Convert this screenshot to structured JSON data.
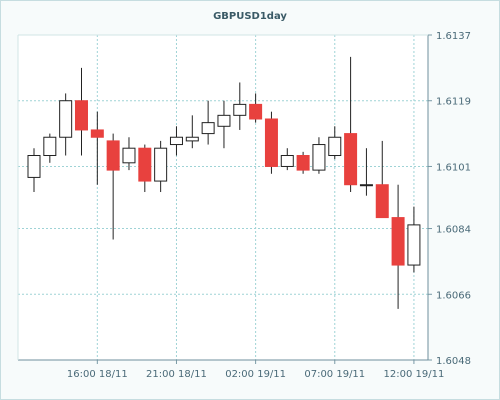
{
  "chart_data": {
    "type": "candlestick",
    "title": "GBPUSD1day",
    "colors": {
      "up": "#ffffff",
      "down": "#e8413e",
      "outline": "#222222",
      "grid": "#9fd3d6",
      "plot_bg": "#ffffff",
      "frame_bg": "#f7fbfb",
      "axis_text": "#4a6a78"
    },
    "ylim": [
      1.6048,
      1.6137
    ],
    "y_ticks": [
      "1.6137",
      "1.6119",
      "1.6101",
      "1.6084",
      "1.6066",
      "1.6048"
    ],
    "x_ticks": [
      "16:00 18/11",
      "21:00 18/11",
      "02:00 19/11",
      "07:00 19/11",
      "12:00 19/11"
    ],
    "x_tick_candle_index": [
      4,
      9,
      14,
      19,
      24
    ],
    "grid": true,
    "candles": [
      {
        "open": 1.6098,
        "high": 1.6106,
        "low": 1.6094,
        "close": 1.6104
      },
      {
        "open": 1.6104,
        "high": 1.611,
        "low": 1.6102,
        "close": 1.6109
      },
      {
        "open": 1.6109,
        "high": 1.6121,
        "low": 1.6104,
        "close": 1.6119
      },
      {
        "open": 1.6119,
        "high": 1.6128,
        "low": 1.6104,
        "close": 1.6111
      },
      {
        "open": 1.6111,
        "high": 1.6116,
        "low": 1.6096,
        "close": 1.6109
      },
      {
        "open": 1.6108,
        "high": 1.611,
        "low": 1.6081,
        "close": 1.61
      },
      {
        "open": 1.6102,
        "high": 1.6109,
        "low": 1.61,
        "close": 1.6106
      },
      {
        "open": 1.6106,
        "high": 1.6107,
        "low": 1.6094,
        "close": 1.6097
      },
      {
        "open": 1.6097,
        "high": 1.6108,
        "low": 1.6094,
        "close": 1.6106
      },
      {
        "open": 1.6107,
        "high": 1.6112,
        "low": 1.6104,
        "close": 1.6109
      },
      {
        "open": 1.6108,
        "high": 1.6115,
        "low": 1.6106,
        "close": 1.6109
      },
      {
        "open": 1.611,
        "high": 1.6119,
        "low": 1.6107,
        "close": 1.6113
      },
      {
        "open": 1.6112,
        "high": 1.6119,
        "low": 1.6106,
        "close": 1.6115
      },
      {
        "open": 1.6115,
        "high": 1.6124,
        "low": 1.6111,
        "close": 1.6118
      },
      {
        "open": 1.6118,
        "high": 1.6121,
        "low": 1.6113,
        "close": 1.6114
      },
      {
        "open": 1.6114,
        "high": 1.6116,
        "low": 1.6099,
        "close": 1.6101
      },
      {
        "open": 1.6101,
        "high": 1.6106,
        "low": 1.61,
        "close": 1.6104
      },
      {
        "open": 1.6104,
        "high": 1.6105,
        "low": 1.6099,
        "close": 1.61
      },
      {
        "open": 1.61,
        "high": 1.6109,
        "low": 1.6099,
        "close": 1.6107
      },
      {
        "open": 1.6104,
        "high": 1.6112,
        "low": 1.6103,
        "close": 1.6109
      },
      {
        "open": 1.611,
        "high": 1.6131,
        "low": 1.6094,
        "close": 1.6096
      },
      {
        "open": 1.6096,
        "high": 1.6106,
        "low": 1.6093,
        "close": 1.6096
      },
      {
        "open": 1.6096,
        "high": 1.6108,
        "low": 1.6087,
        "close": 1.6087
      },
      {
        "open": 1.6087,
        "high": 1.6096,
        "low": 1.6062,
        "close": 1.6074
      },
      {
        "open": 1.6074,
        "high": 1.609,
        "low": 1.6072,
        "close": 1.6085
      }
    ]
  }
}
